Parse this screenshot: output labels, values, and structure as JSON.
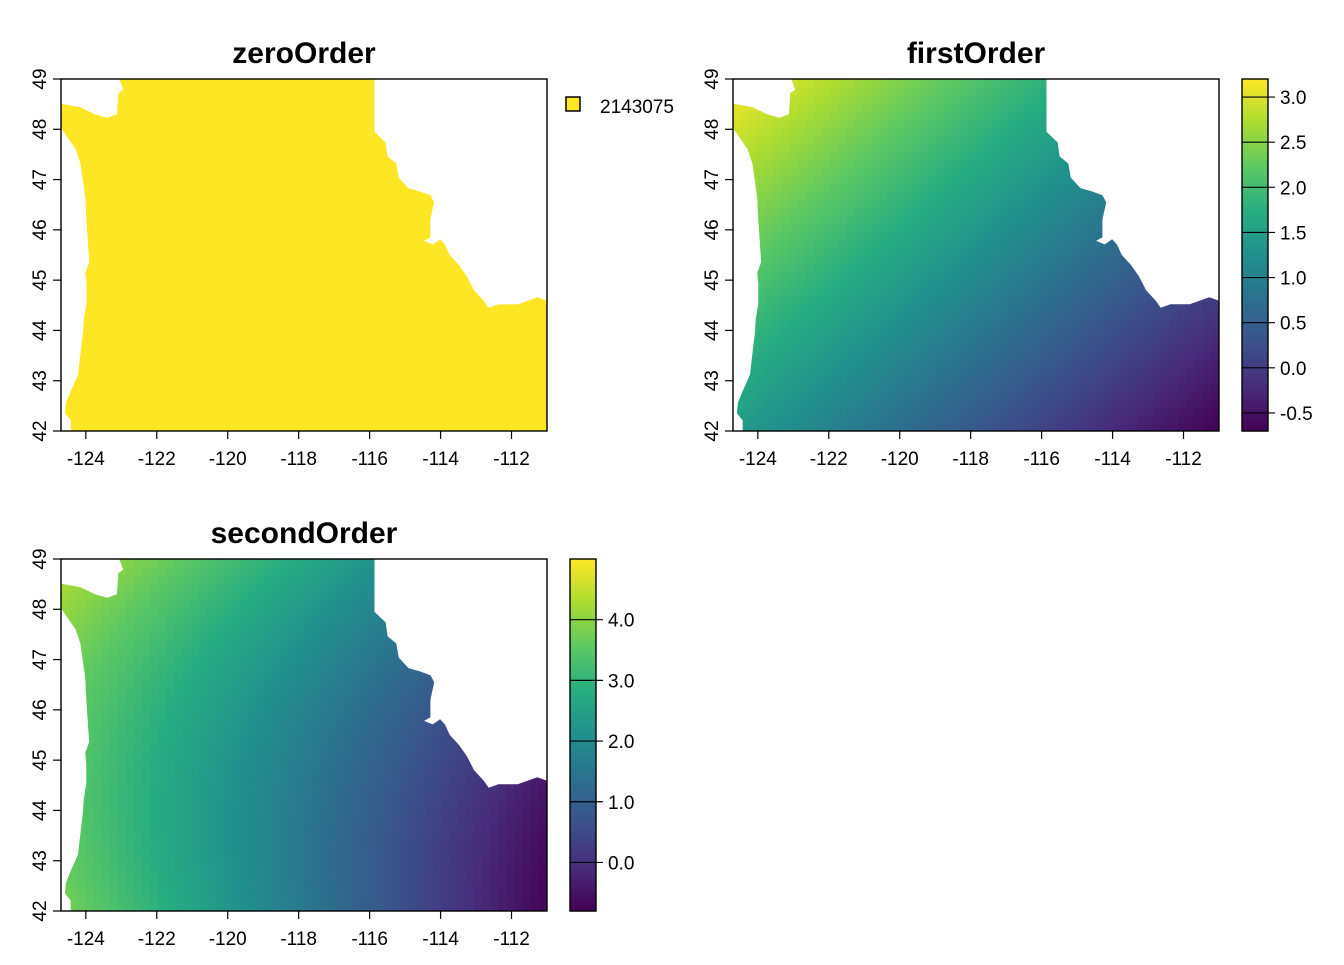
{
  "chart_data": [
    {
      "type": "heatmap",
      "title": "zeroOrder",
      "xticks": [
        "-124",
        "-122",
        "-120",
        "-118",
        "-116",
        "-114",
        "-112"
      ],
      "yticks": [
        "42",
        "43",
        "44",
        "45",
        "46",
        "47",
        "48",
        "49"
      ],
      "xlim": [
        -124.7,
        -111.0
      ],
      "ylim": [
        42.0,
        49.0
      ],
      "legend": {
        "kind": "categorical",
        "entries": [
          {
            "label": "2143075",
            "color": "#fde725"
          }
        ]
      },
      "surface": {
        "model": "constant",
        "value": 2143075
      }
    },
    {
      "type": "heatmap",
      "title": "firstOrder",
      "xticks": [
        "-124",
        "-122",
        "-120",
        "-118",
        "-116",
        "-114",
        "-112"
      ],
      "yticks": [
        "42",
        "43",
        "44",
        "45",
        "46",
        "47",
        "48",
        "49"
      ],
      "xlim": [
        -124.7,
        -111.0
      ],
      "ylim": [
        42.0,
        49.0
      ],
      "legend": {
        "kind": "continuous",
        "range": [
          -0.7,
          3.2
        ],
        "ticks": [
          {
            "value": 3.0,
            "label": "3.0"
          },
          {
            "value": 2.5,
            "label": "2.5"
          },
          {
            "value": 2.0,
            "label": "2.0"
          },
          {
            "value": 1.5,
            "label": "1.5"
          },
          {
            "value": 1.0,
            "label": "1.0"
          },
          {
            "value": 0.5,
            "label": "0.5"
          },
          {
            "value": 0.0,
            "label": "0.0"
          },
          {
            "value": -0.5,
            "label": "-0.5"
          }
        ]
      },
      "surface": {
        "model": "linear",
        "approx_max": 3.2,
        "approx_min": -0.7,
        "max_at": "north-west",
        "min_at": "south-east"
      }
    },
    {
      "type": "heatmap",
      "title": "secondOrder",
      "xticks": [
        "-124",
        "-122",
        "-120",
        "-118",
        "-116",
        "-114",
        "-112"
      ],
      "yticks": [
        "42",
        "43",
        "44",
        "45",
        "46",
        "47",
        "48",
        "49"
      ],
      "xlim": [
        -124.7,
        -111.0
      ],
      "ylim": [
        42.0,
        49.0
      ],
      "legend": {
        "kind": "continuous",
        "range": [
          -0.8,
          5.0
        ],
        "ticks": [
          {
            "value": 4.0,
            "label": "4.0"
          },
          {
            "value": 3.0,
            "label": "3.0"
          },
          {
            "value": 2.0,
            "label": "2.0"
          },
          {
            "value": 1.0,
            "label": "1.0"
          },
          {
            "value": 0.0,
            "label": "0.0"
          }
        ]
      },
      "surface": {
        "model": "quadratic",
        "approx_max": 5.0,
        "approx_min": -0.8,
        "max_at": "north-west",
        "min_at": "east"
      }
    }
  ],
  "colors": {
    "palette": "viridis",
    "constant_fill": "#fde725",
    "frame": "#000000"
  }
}
